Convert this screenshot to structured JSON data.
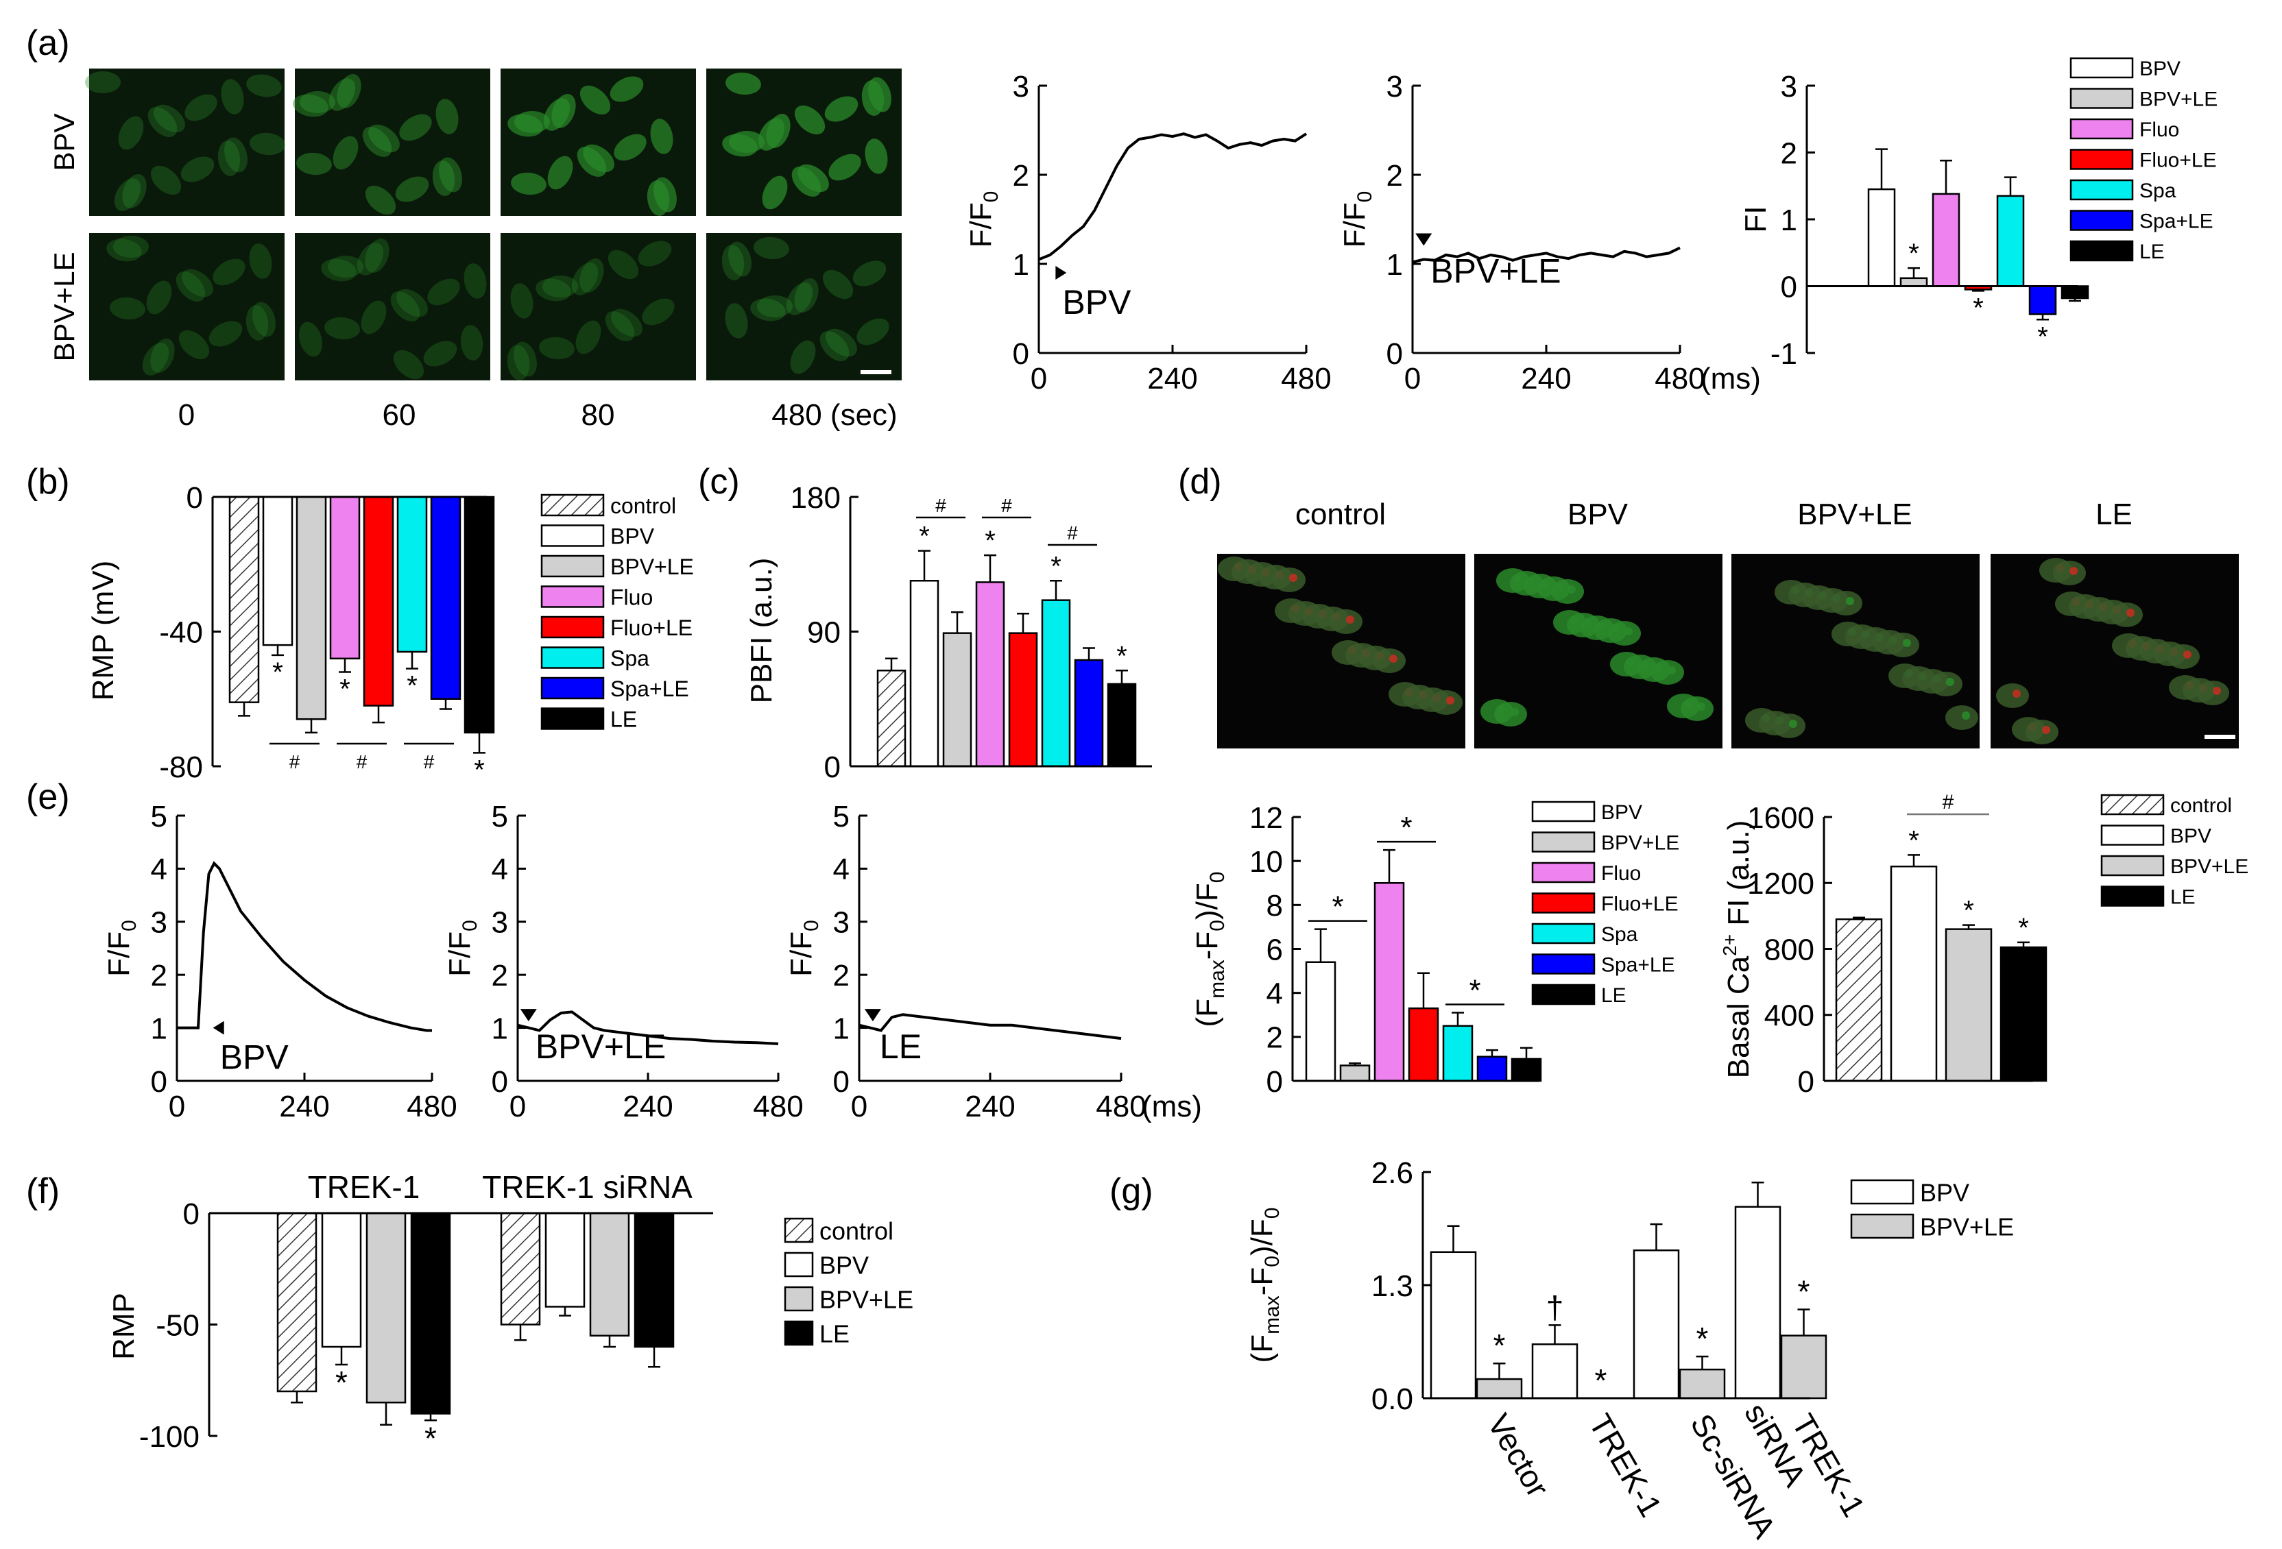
{
  "panel_labels": [
    "(a)",
    "(b)",
    "(c)",
    "(d)",
    "(e)",
    "(f)",
    "(g)"
  ],
  "colors": {
    "control": "#ffffff",
    "BPV": "#ffffff",
    "BPV+LE": "#d0d0d0",
    "Fluo": "#ee82ee",
    "Fluo+LE": "#ff0000",
    "Spa": "#00eeee",
    "Spa+LE": "#0000ff",
    "LE": "#000000",
    "micro_green": "#2a8a2a",
    "micro_red": "#c03020"
  },
  "micrographs_a": {
    "rows": [
      "BPV",
      "BPV+LE"
    ],
    "times": [
      "0",
      "60",
      "80",
      "480 (sec)"
    ],
    "brightness": [
      [
        0.35,
        0.5,
        0.7,
        0.75
      ],
      [
        0.3,
        0.3,
        0.3,
        0.35
      ]
    ]
  },
  "micrographs_d": {
    "labels": [
      "control",
      "BPV",
      "BPV+LE",
      "LE"
    ]
  },
  "chart_data": [
    {
      "id": "a1",
      "type": "line",
      "ylabel": "F/F",
      "ylabel_sub": "0",
      "xlim": [
        0,
        480
      ],
      "ylim": [
        0,
        3
      ],
      "xticks": [
        0,
        240,
        480
      ],
      "yticks": [
        0,
        1,
        2,
        3
      ],
      "annotation": "BPV",
      "arrow": "right",
      "arrow_at": [
        30,
        0.9
      ],
      "x": [
        0,
        20,
        40,
        60,
        80,
        100,
        120,
        140,
        160,
        180,
        200,
        220,
        240,
        260,
        280,
        300,
        320,
        340,
        360,
        380,
        400,
        420,
        440,
        460,
        480
      ],
      "y": [
        1.05,
        1.1,
        1.2,
        1.32,
        1.42,
        1.6,
        1.85,
        2.1,
        2.3,
        2.4,
        2.42,
        2.45,
        2.43,
        2.46,
        2.42,
        2.45,
        2.38,
        2.3,
        2.34,
        2.36,
        2.33,
        2.38,
        2.4,
        2.38,
        2.46
      ]
    },
    {
      "id": "a2",
      "type": "line",
      "ylabel": "F/F",
      "ylabel_sub": "0",
      "xlim": [
        0,
        480
      ],
      "ylim": [
        0,
        3
      ],
      "xticks": [
        0,
        240,
        480
      ],
      "yticks": [
        0,
        1,
        2,
        3
      ],
      "xunit": "(ms)",
      "annotation": "BPV+LE",
      "arrow": "down",
      "arrow_at": [
        20,
        1.25
      ],
      "x": [
        0,
        20,
        40,
        60,
        80,
        100,
        120,
        140,
        160,
        180,
        200,
        220,
        240,
        260,
        280,
        300,
        320,
        340,
        360,
        380,
        400,
        420,
        440,
        460,
        480
      ],
      "y": [
        1.02,
        1.05,
        1.04,
        1.1,
        1.08,
        1.12,
        1.06,
        1.1,
        1.08,
        1.04,
        1.08,
        1.1,
        1.12,
        1.08,
        1.06,
        1.1,
        1.12,
        1.1,
        1.08,
        1.14,
        1.12,
        1.08,
        1.1,
        1.12,
        1.18
      ]
    },
    {
      "id": "a3",
      "type": "bar",
      "ylabel": "FI",
      "ylim": [
        -1,
        3
      ],
      "yticks": [
        -1,
        0,
        1,
        2,
        3
      ],
      "categories": [
        "BPV",
        "BPV+LE",
        "Fluo",
        "Fluo+LE",
        "Spa",
        "Spa+LE",
        "LE"
      ],
      "values": [
        1.45,
        0.12,
        1.38,
        -0.05,
        1.35,
        -0.42,
        -0.18
      ],
      "errors": [
        0.6,
        0.15,
        0.5,
        0.02,
        0.28,
        0.08,
        0.04
      ],
      "stars": [
        "",
        "*",
        "",
        "*",
        "",
        "*",
        ""
      ],
      "legend": [
        "BPV",
        "BPV+LE",
        "Fluo",
        "Fluo+LE",
        "Spa",
        "Spa+LE",
        "LE"
      ]
    },
    {
      "id": "b",
      "type": "bar",
      "ylabel": "RMP (mV)",
      "ylim": [
        -80,
        0
      ],
      "yticks": [
        0,
        -40,
        -80
      ],
      "categories": [
        "control",
        "BPV",
        "BPV+LE",
        "Fluo",
        "Fluo+LE",
        "Spa",
        "Spa+LE",
        "LE"
      ],
      "values": [
        -61,
        -44,
        -66,
        -48,
        -62,
        -46,
        -60,
        -70
      ],
      "errors": [
        4,
        3,
        4,
        4,
        5,
        5,
        3,
        6
      ],
      "stars": [
        "",
        "*",
        "",
        "*",
        "",
        "*",
        "",
        "*"
      ],
      "hash_pairs": [
        [
          1,
          2
        ],
        [
          3,
          4
        ],
        [
          5,
          6
        ]
      ],
      "hash": "#",
      "legend": [
        "control",
        "BPV",
        "BPV+LE",
        "Fluo",
        "Fluo+LE",
        "Spa",
        "Spa+LE",
        "LE"
      ]
    },
    {
      "id": "c",
      "type": "bar",
      "ylabel": "PBFI (a.u.)",
      "ylim": [
        0,
        180
      ],
      "yticks": [
        0,
        90,
        180
      ],
      "categories": [
        "control",
        "BPV",
        "BPV+LE",
        "Fluo",
        "Fluo+LE",
        "Spa",
        "Spa+LE",
        "LE"
      ],
      "values": [
        64,
        124,
        89,
        123,
        89,
        111,
        71,
        55
      ],
      "errors": [
        8,
        20,
        14,
        18,
        13,
        13,
        8,
        9
      ],
      "stars": [
        "",
        "*",
        "",
        "*",
        "",
        "*",
        "",
        "*"
      ],
      "hash_pairs": [
        [
          1,
          2
        ],
        [
          3,
          4
        ],
        [
          5,
          6
        ]
      ],
      "hash": "#"
    },
    {
      "id": "e1",
      "type": "line",
      "ylabel": "F/F",
      "ylabel_sub": "0",
      "xlim": [
        0,
        480
      ],
      "ylim": [
        0,
        5
      ],
      "xticks": [
        0,
        240,
        480
      ],
      "yticks": [
        0,
        1,
        2,
        3,
        4,
        5
      ],
      "annotation": "BPV",
      "arrow": "left",
      "arrow_at": [
        68,
        1.0
      ],
      "x": [
        0,
        40,
        50,
        60,
        70,
        80,
        100,
        120,
        160,
        200,
        240,
        280,
        320,
        360,
        400,
        440,
        470,
        480
      ],
      "y": [
        1.0,
        1.0,
        2.8,
        3.9,
        4.1,
        4.0,
        3.6,
        3.2,
        2.7,
        2.25,
        1.9,
        1.6,
        1.38,
        1.22,
        1.1,
        1.0,
        0.95,
        0.95
      ]
    },
    {
      "id": "e2",
      "type": "line",
      "ylabel": "F/F",
      "ylabel_sub": "0",
      "xlim": [
        0,
        480
      ],
      "ylim": [
        0,
        5
      ],
      "xticks": [
        0,
        240,
        480
      ],
      "yticks": [
        0,
        1,
        2,
        3,
        4,
        5
      ],
      "annotation": "BPV+LE",
      "arrow": "down",
      "arrow_at": [
        20,
        1.2
      ],
      "x": [
        0,
        20,
        40,
        60,
        80,
        100,
        120,
        140,
        160,
        200,
        240,
        280,
        320,
        360,
        400,
        440,
        480
      ],
      "y": [
        1.05,
        1.0,
        0.95,
        1.15,
        1.28,
        1.3,
        1.15,
        1.0,
        0.95,
        0.9,
        0.85,
        0.8,
        0.78,
        0.75,
        0.73,
        0.72,
        0.7
      ]
    },
    {
      "id": "e3",
      "type": "line",
      "ylabel": "F/F",
      "ylabel_sub": "0",
      "xlim": [
        0,
        480
      ],
      "ylim": [
        0,
        5
      ],
      "xticks": [
        0,
        240,
        480
      ],
      "yticks": [
        0,
        1,
        2,
        3,
        4,
        5
      ],
      "xunit": "(ms)",
      "annotation": "LE",
      "arrow": "down",
      "arrow_at": [
        25,
        1.2
      ],
      "x": [
        0,
        20,
        40,
        60,
        80,
        120,
        160,
        200,
        240,
        280,
        320,
        360,
        400,
        440,
        480
      ],
      "y": [
        1.05,
        1.0,
        0.95,
        1.2,
        1.25,
        1.2,
        1.15,
        1.1,
        1.05,
        1.05,
        1.0,
        0.95,
        0.9,
        0.85,
        0.8
      ]
    },
    {
      "id": "d1",
      "type": "bar",
      "ylabel": "(F",
      "ylim": [
        0,
        12
      ],
      "yticks": [
        0,
        2,
        4,
        6,
        8,
        10,
        12
      ],
      "categories": [
        "BPV",
        "BPV+LE",
        "Fluo",
        "Fluo+LE",
        "Spa",
        "Spa+LE",
        "LE"
      ],
      "values": [
        5.4,
        0.7,
        9.0,
        3.3,
        2.5,
        1.1,
        1.0
      ],
      "errors": [
        1.5,
        0.1,
        1.5,
        1.6,
        0.6,
        0.3,
        0.5
      ],
      "brackets": [
        [
          0,
          1
        ],
        [
          2,
          3
        ],
        [
          4,
          5
        ]
      ],
      "bracket_mark": "*",
      "legend": [
        "BPV",
        "BPV+LE",
        "Fluo",
        "Fluo+LE",
        "Spa",
        "Spa+LE",
        "LE"
      ]
    },
    {
      "id": "d2",
      "type": "bar",
      "ylabel": "Basal Ca",
      "ylim": [
        0,
        1600
      ],
      "yticks": [
        0,
        400,
        800,
        1200,
        1600
      ],
      "categories": [
        "control",
        "BPV",
        "BPV+LE",
        "LE"
      ],
      "values": [
        980,
        1300,
        920,
        810
      ],
      "errors": [
        10,
        70,
        25,
        30
      ],
      "stars": [
        "",
        "*",
        "*",
        "*"
      ],
      "hash_bracket": [
        1,
        2
      ],
      "hash": "#",
      "legend": [
        "control",
        "BPV",
        "BPV+LE",
        "LE"
      ]
    },
    {
      "id": "f",
      "type": "bar",
      "ylabel": "RMP",
      "ylim": [
        -100,
        0
      ],
      "yticks": [
        0,
        -50,
        -100
      ],
      "groups": [
        "TREK-1",
        "TREK-1 siRNA"
      ],
      "categories": [
        "control",
        "BPV",
        "BPV+LE",
        "LE"
      ],
      "series_values": [
        [
          -80,
          -60,
          -85,
          -90
        ],
        [
          -50,
          -42,
          -55,
          -60
        ]
      ],
      "series_errors": [
        [
          5,
          8,
          10,
          3
        ],
        [
          7,
          4,
          5,
          9
        ]
      ],
      "stars": [
        [
          "",
          "*",
          "",
          "*"
        ],
        [
          "",
          "",
          "",
          ""
        ]
      ],
      "legend": [
        "control",
        "BPV",
        "BPV+LE",
        "LE"
      ]
    },
    {
      "id": "g",
      "type": "bar",
      "ylabel": "(F",
      "ylim": [
        0,
        2.6
      ],
      "yticks": [
        0.0,
        1.3,
        2.6
      ],
      "groups": [
        "Vector",
        "TREK-1",
        "Sc-siRNA",
        "TREK-1 siRNA"
      ],
      "categories": [
        "BPV",
        "BPV+LE"
      ],
      "series_values": [
        [
          1.68,
          0.22
        ],
        [
          0.62,
          0.0
        ],
        [
          1.7,
          0.33
        ],
        [
          2.2,
          0.72
        ]
      ],
      "series_errors": [
        [
          0.3,
          0.18
        ],
        [
          0.22,
          0.0
        ],
        [
          0.3,
          0.15
        ],
        [
          0.28,
          0.3
        ]
      ],
      "marks": [
        [
          "",
          "*"
        ],
        [
          "†",
          "*"
        ],
        [
          "",
          "*"
        ],
        [
          "",
          "*"
        ]
      ],
      "legend": [
        "BPV",
        "BPV+LE"
      ]
    }
  ]
}
